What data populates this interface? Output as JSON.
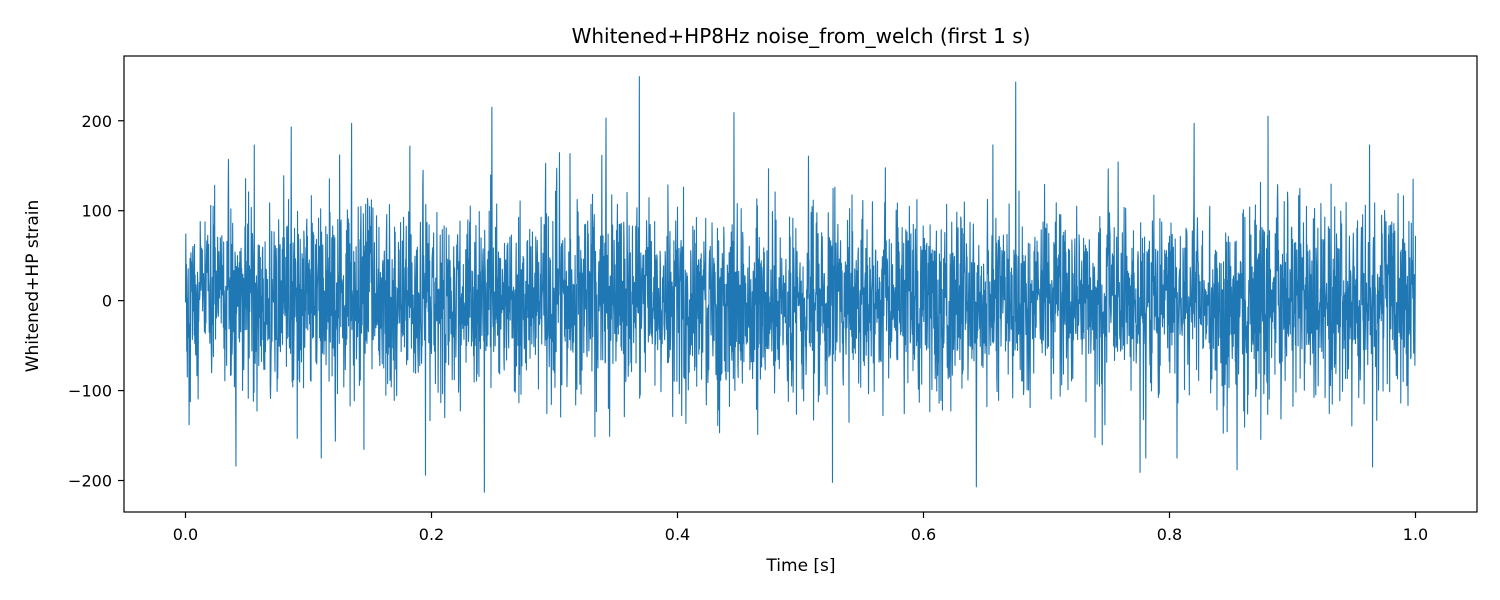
{
  "chart_data": {
    "type": "line",
    "title": "Whitened+HP8Hz noise_from_welch (first 1 s)",
    "xlabel": "Time [s]",
    "ylabel": "Whitened+HP strain",
    "xlim": [
      -0.05,
      1.05
    ],
    "ylim": [
      -235,
      272
    ],
    "xticks": [
      0.0,
      0.2,
      0.4,
      0.6,
      0.8,
      1.0
    ],
    "xtick_labels": [
      "0.0",
      "0.2",
      "0.4",
      "0.6",
      "0.8",
      "1.0"
    ],
    "yticks": [
      -200,
      -100,
      0,
      100,
      200
    ],
    "ytick_labels": [
      "−200",
      "−100",
      "0",
      "100",
      "200"
    ],
    "grid": false,
    "legend": "none",
    "series": [
      {
        "color": "#1f77b4",
        "sample_count": 4096,
        "x_range": [
          0.0,
          1.0
        ],
        "noise_scale": 52,
        "notable_points": [
          {
            "x": 0.0,
            "y": -2
          },
          {
            "x": 0.003,
            "y": -138
          },
          {
            "x": 0.012,
            "y": 88
          },
          {
            "x": 0.035,
            "y": 157
          },
          {
            "x": 0.041,
            "y": -184
          },
          {
            "x": 0.056,
            "y": 173
          },
          {
            "x": 0.086,
            "y": 193
          },
          {
            "x": 0.135,
            "y": 197
          },
          {
            "x": 0.195,
            "y": -194
          },
          {
            "x": 0.243,
            "y": -213
          },
          {
            "x": 0.249,
            "y": 215
          },
          {
            "x": 0.342,
            "y": 203
          },
          {
            "x": 0.369,
            "y": 249
          },
          {
            "x": 0.446,
            "y": 209
          },
          {
            "x": 0.526,
            "y": -202
          },
          {
            "x": 0.643,
            "y": -207
          },
          {
            "x": 0.675,
            "y": 243
          },
          {
            "x": 0.776,
            "y": -191
          },
          {
            "x": 0.82,
            "y": 197
          },
          {
            "x": 0.855,
            "y": -188
          },
          {
            "x": 0.88,
            "y": 205
          },
          {
            "x": 0.965,
            "y": -185
          },
          {
            "x": 0.998,
            "y": 135
          },
          {
            "x": 1.0,
            "y": 72
          }
        ]
      }
    ]
  }
}
